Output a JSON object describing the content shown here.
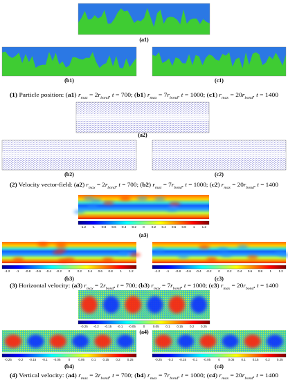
{
  "panel_labels": {
    "a1": "(a1)",
    "b1": "(b1)",
    "c1": "(c1)",
    "a2": "(a2)",
    "b2": "(b2)",
    "c2": "(c2)",
    "a3": "(a3)",
    "b3": "(b3)",
    "c3": "(c3)",
    "a4": "(a4)",
    "b4": "(b4)",
    "c4": "(c4)"
  },
  "colorbar_ticks": {
    "horizontal": [
      "-1.2",
      "-1",
      "-0.8",
      "-0.6",
      "-0.4",
      "-0.2",
      "0",
      "0.2",
      "0.4",
      "0.6",
      "0.8",
      "1",
      "1.2"
    ],
    "vertical": [
      "-0.25",
      "-0.2",
      "-0.15",
      "-0.1",
      "-0.05",
      "0",
      "0.05",
      "0.1",
      "0.15",
      "0.2",
      "0.25"
    ]
  },
  "captions": [
    [
      {
        "b": "(1)"
      },
      " Particle position: (",
      {
        "b": "a1"
      },
      ") ",
      {
        "i": "r"
      },
      {
        "sub": "max"
      },
      " = 2",
      {
        "i": "r"
      },
      {
        "sub": "bond"
      },
      ", ",
      {
        "i": "t"
      },
      " = 700; (",
      {
        "b": "b1"
      },
      ") ",
      {
        "i": "r"
      },
      {
        "sub": "max"
      },
      " = 7",
      {
        "i": "r"
      },
      {
        "sub": "bond"
      },
      ", ",
      {
        "i": "t"
      },
      " = 1000; (",
      {
        "b": "c1"
      },
      ") ",
      {
        "i": "r"
      },
      {
        "sub": "max"
      },
      " = 20",
      {
        "i": "r"
      },
      {
        "sub": "bond"
      },
      ", ",
      {
        "i": "t"
      },
      " = 1400"
    ],
    [
      {
        "b": "(2)"
      },
      " Velocity vector-field: (",
      {
        "b": "a2"
      },
      ") ",
      {
        "i": "r"
      },
      {
        "sub": "max"
      },
      " = 2",
      {
        "i": "r"
      },
      {
        "sub": "bond"
      },
      ", ",
      {
        "i": "t"
      },
      " = 700; (",
      {
        "b": "b2"
      },
      ") ",
      {
        "i": "r"
      },
      {
        "sub": "max"
      },
      " = 7",
      {
        "i": "r"
      },
      {
        "sub": "bond"
      },
      ", ",
      {
        "i": "t"
      },
      " = 1000; (",
      {
        "b": "c2"
      },
      ") ",
      {
        "i": "r"
      },
      {
        "sub": "max"
      },
      " = 20",
      {
        "i": "r"
      },
      {
        "sub": "bond"
      },
      ", ",
      {
        "i": "t"
      },
      " = 1400"
    ],
    [
      {
        "b": "(3)"
      },
      " Horizontal velocity: (",
      {
        "b": "a3"
      },
      ") ",
      {
        "i": "r"
      },
      {
        "sub": "max"
      },
      " = 2",
      {
        "i": "r"
      },
      {
        "sub": "bond"
      },
      ", ",
      {
        "i": "t"
      },
      " = 700; (",
      {
        "b": "b3"
      },
      ") ",
      {
        "i": "r"
      },
      {
        "sub": "max"
      },
      " = 7",
      {
        "i": "r"
      },
      {
        "sub": "bond"
      },
      ", ",
      {
        "i": "t"
      },
      " = 1000; (",
      {
        "b": "c3"
      },
      ") ",
      {
        "i": "r"
      },
      {
        "sub": "max"
      },
      " = 20",
      {
        "i": "r"
      },
      {
        "sub": "bond"
      },
      ", ",
      {
        "i": "t"
      },
      " = 1400"
    ],
    [
      {
        "b": "(4)"
      },
      " Vertical velocity: (",
      {
        "b": "a4"
      },
      ") ",
      {
        "i": "r"
      },
      {
        "sub": "max"
      },
      " = 2",
      {
        "i": "r"
      },
      {
        "sub": "bond"
      },
      ", ",
      {
        "i": "t"
      },
      " = 700; (",
      {
        "b": "b4"
      },
      ") ",
      {
        "i": "r"
      },
      {
        "sub": "max"
      },
      " = 7",
      {
        "i": "r"
      },
      {
        "sub": "bond"
      },
      ", ",
      {
        "i": "t"
      },
      " = 1000; (",
      {
        "b": "c4"
      },
      ") ",
      {
        "i": "r"
      },
      {
        "sub": "max"
      },
      " = 20",
      {
        "i": "r"
      },
      {
        "sub": "bond"
      },
      ", ",
      {
        "i": "t"
      },
      " = 1400"
    ]
  ]
}
